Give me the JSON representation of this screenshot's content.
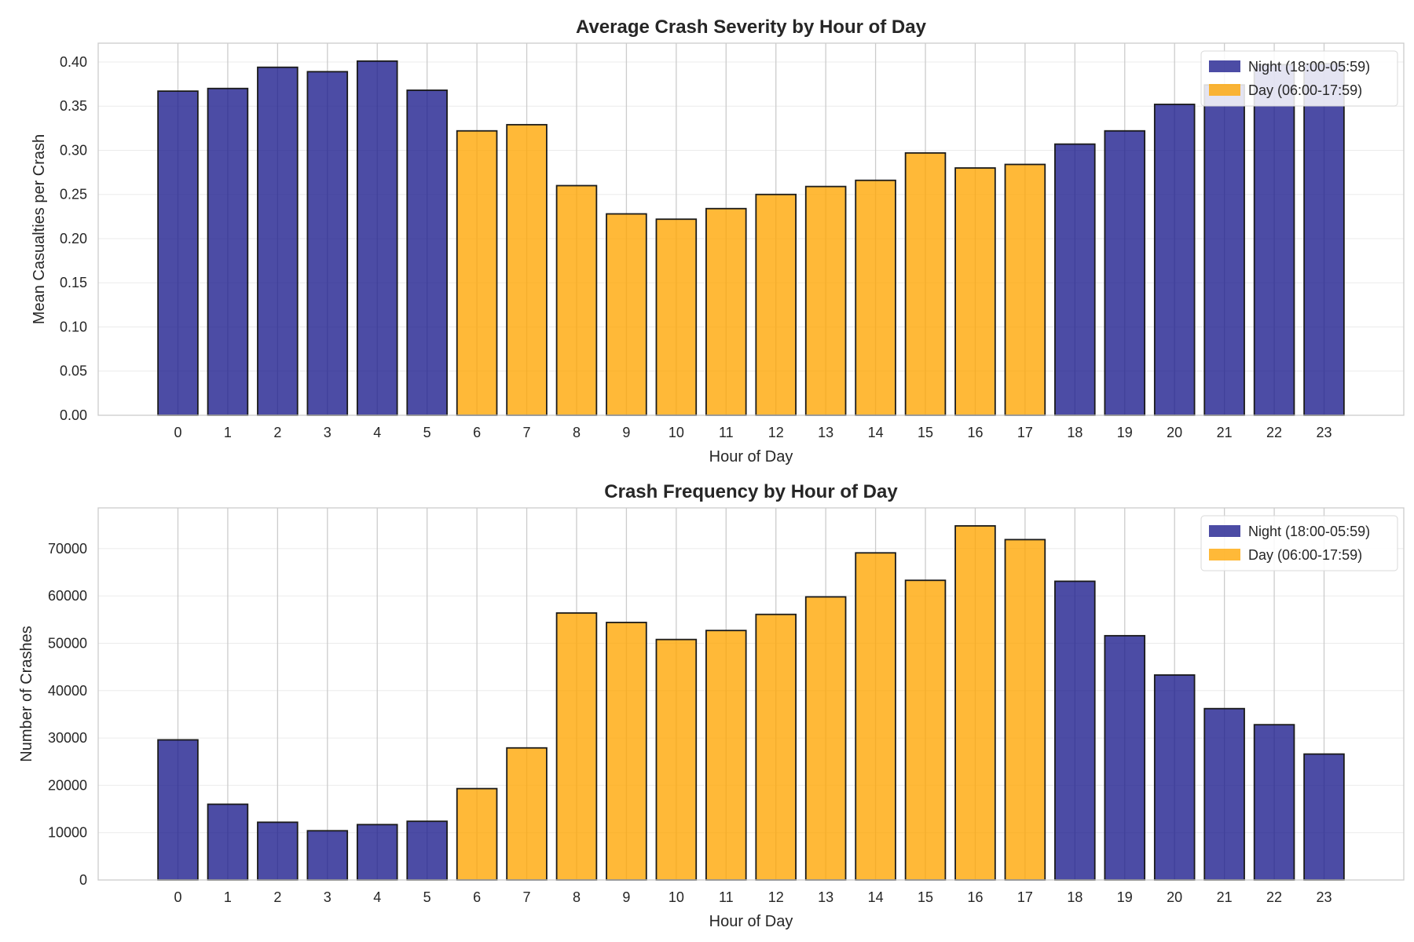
{
  "colors": {
    "night": "#1a1a8c",
    "day": "#ffa500"
  },
  "legend": {
    "night": "Night (18:00-05:59)",
    "day": "Day (06:00-17:59)"
  },
  "chart_data": [
    {
      "type": "bar",
      "title": "Average Crash Severity by Hour of Day",
      "xlabel": "Hour of Day",
      "ylabel": "Mean Casualties per Crash",
      "categories": [
        "0",
        "1",
        "2",
        "3",
        "4",
        "5",
        "6",
        "7",
        "8",
        "9",
        "10",
        "11",
        "12",
        "13",
        "14",
        "15",
        "16",
        "17",
        "18",
        "19",
        "20",
        "21",
        "22",
        "23"
      ],
      "values": [
        0.367,
        0.37,
        0.394,
        0.389,
        0.401,
        0.368,
        0.322,
        0.329,
        0.26,
        0.228,
        0.222,
        0.234,
        0.25,
        0.259,
        0.266,
        0.297,
        0.28,
        0.284,
        0.307,
        0.322,
        0.352,
        0.374,
        0.397,
        0.398
      ],
      "period": [
        "night",
        "night",
        "night",
        "night",
        "night",
        "night",
        "day",
        "day",
        "day",
        "day",
        "day",
        "day",
        "day",
        "day",
        "day",
        "day",
        "day",
        "day",
        "night",
        "night",
        "night",
        "night",
        "night",
        "night"
      ],
      "ylim": [
        0,
        0.4213
      ],
      "yticks": [
        0,
        0.05,
        0.1,
        0.15,
        0.2,
        0.25,
        0.3,
        0.35,
        0.4
      ],
      "ytick_labels": [
        "0.00",
        "0.05",
        "0.10",
        "0.15",
        "0.20",
        "0.25",
        "0.30",
        "0.35",
        "0.40"
      ],
      "grid": true,
      "legend_position": "top-right"
    },
    {
      "type": "bar",
      "title": "Crash Frequency by Hour of Day",
      "xlabel": "Hour of Day",
      "ylabel": "Number of Crashes",
      "categories": [
        "0",
        "1",
        "2",
        "3",
        "4",
        "5",
        "6",
        "7",
        "8",
        "9",
        "10",
        "11",
        "12",
        "13",
        "14",
        "15",
        "16",
        "17",
        "18",
        "19",
        "20",
        "21",
        "22",
        "23"
      ],
      "values": [
        29600,
        16000,
        12200,
        10400,
        11700,
        12400,
        19300,
        27900,
        56400,
        54400,
        50800,
        52700,
        56100,
        59800,
        69100,
        63300,
        74800,
        71900,
        63100,
        51600,
        43300,
        36200,
        32800,
        26600
      ],
      "period": [
        "night",
        "night",
        "night",
        "night",
        "night",
        "night",
        "day",
        "day",
        "day",
        "day",
        "day",
        "day",
        "day",
        "day",
        "day",
        "day",
        "day",
        "day",
        "night",
        "night",
        "night",
        "night",
        "night",
        "night"
      ],
      "ylim": [
        0,
        78600
      ],
      "yticks": [
        0,
        10000,
        20000,
        30000,
        40000,
        50000,
        60000,
        70000
      ],
      "ytick_labels": [
        "0",
        "10000",
        "20000",
        "30000",
        "40000",
        "50000",
        "60000",
        "70000"
      ],
      "grid": true,
      "legend_position": "top-right"
    }
  ]
}
